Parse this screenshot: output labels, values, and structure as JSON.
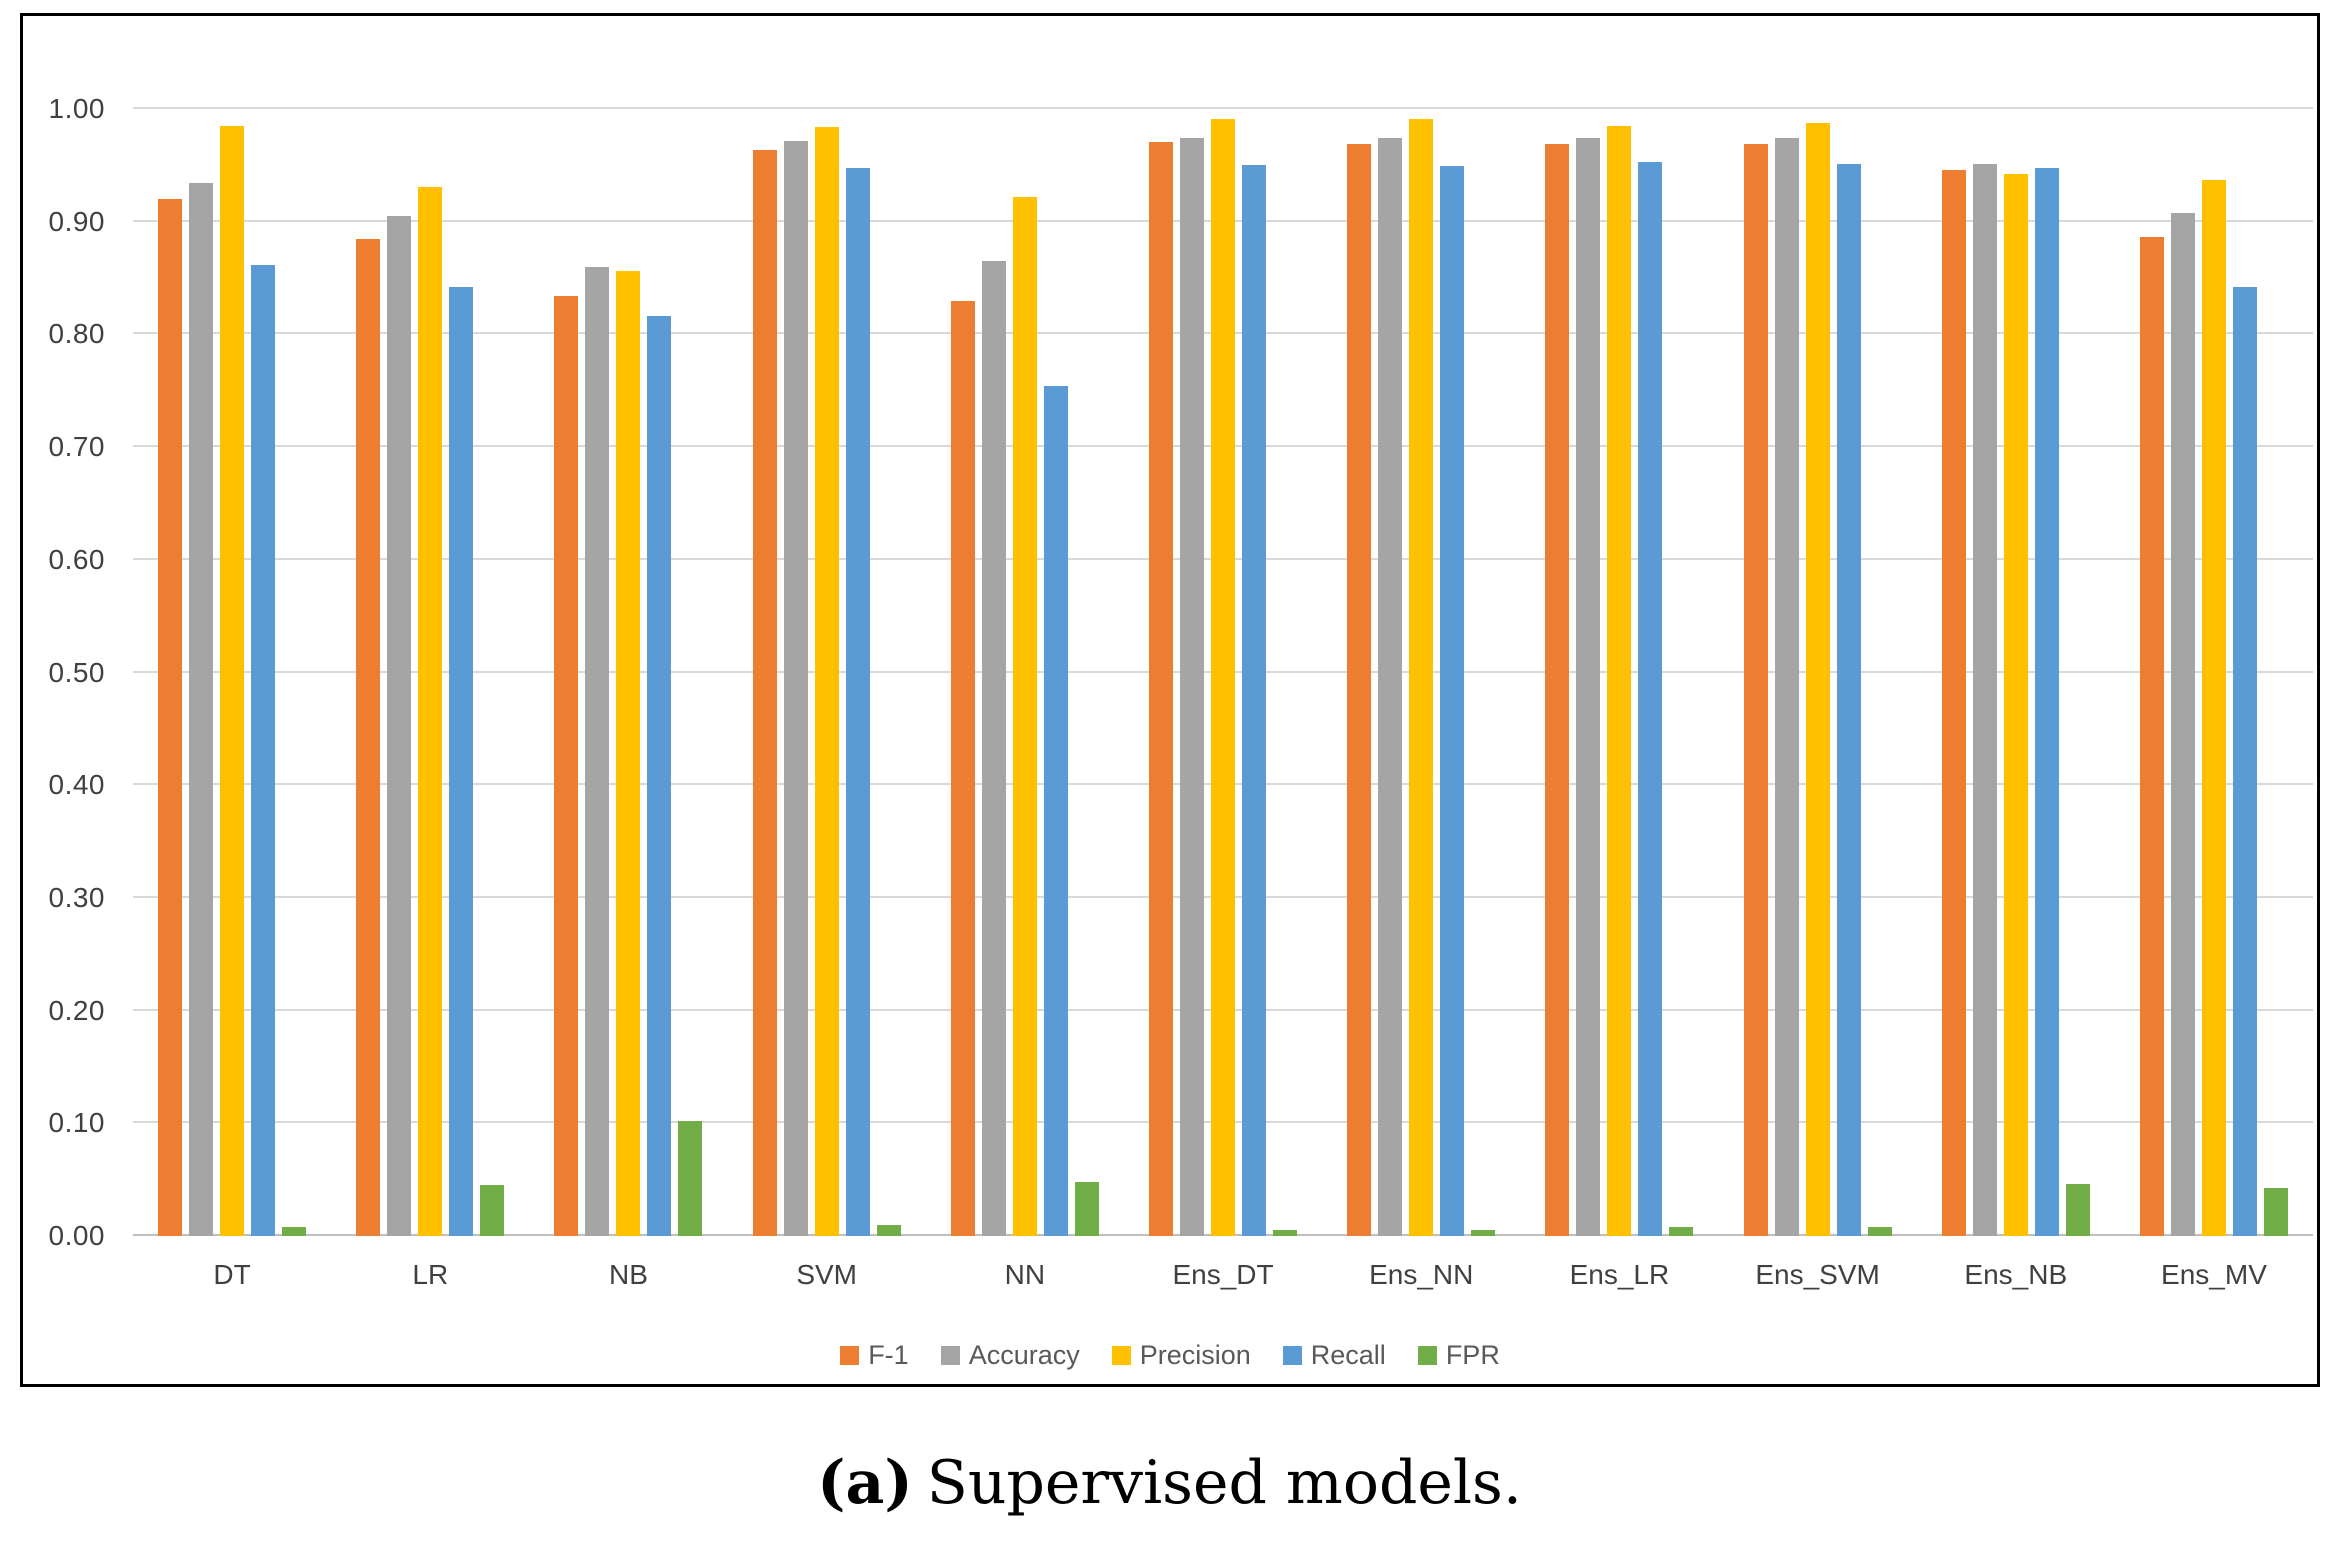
{
  "chart_data": {
    "type": "bar",
    "title": "",
    "xlabel": "",
    "ylabel": "",
    "categories": [
      "DT",
      "LR",
      "NB",
      "SVM",
      "NN",
      "Ens_DT",
      "Ens_NN",
      "Ens_LR",
      "Ens_SVM",
      "Ens_NB",
      "Ens_MV"
    ],
    "series": [
      {
        "name": "F-1",
        "color": "#ED7D31",
        "values": [
          0.92,
          0.885,
          0.834,
          0.964,
          0.83,
          0.971,
          0.969,
          0.969,
          0.969,
          0.946,
          0.886
        ]
      },
      {
        "name": "Accuracy",
        "color": "#A5A5A5",
        "values": [
          0.934,
          0.905,
          0.86,
          0.972,
          0.865,
          0.974,
          0.974,
          0.974,
          0.974,
          0.951,
          0.908
        ]
      },
      {
        "name": "Precision",
        "color": "#FFC000",
        "values": [
          0.985,
          0.931,
          0.856,
          0.984,
          0.922,
          0.991,
          0.991,
          0.985,
          0.988,
          0.942,
          0.937
        ]
      },
      {
        "name": "Recall",
        "color": "#5B9BD5",
        "values": [
          0.862,
          0.842,
          0.816,
          0.948,
          0.754,
          0.95,
          0.949,
          0.953,
          0.951,
          0.948,
          0.842
        ]
      },
      {
        "name": "FPR",
        "color": "#70AD47",
        "values": [
          0.008,
          0.045,
          0.102,
          0.01,
          0.048,
          0.005,
          0.005,
          0.008,
          0.008,
          0.046,
          0.043
        ]
      }
    ],
    "ylim": [
      0.0,
      1.0
    ],
    "y_tick_labels_top_to_bottom": [
      "1.00",
      "0.90",
      "0.80",
      "0.70",
      "0.60",
      "0.50",
      "0.40",
      "0.30",
      "0.20",
      "0.10",
      "0.00"
    ],
    "grid": true,
    "legend_position": "bottom-center"
  },
  "caption": {
    "prefix": "(a)",
    "text": "Supervised models."
  }
}
